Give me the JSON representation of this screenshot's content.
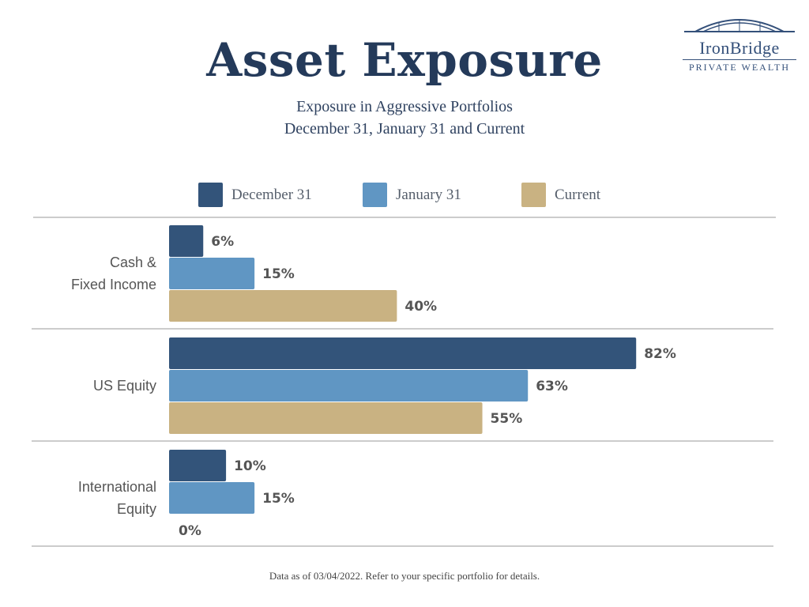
{
  "title": "Asset Exposure",
  "subtitle_line1": "Exposure in Aggressive Portfolios",
  "subtitle_line2": "December 31, January 31 and Current",
  "logo": {
    "name": "IronBridge",
    "tagline": "PRIVATE WEALTH"
  },
  "footer": "Data as of 03/04/2022.  Refer to your specific portfolio for details.",
  "chart_data": {
    "type": "bar",
    "orientation": "horizontal",
    "categories": [
      [
        "Cash &",
        "Fixed Income"
      ],
      [
        "US Equity"
      ],
      [
        "International",
        "Equity"
      ]
    ],
    "series": [
      {
        "name": "December 31",
        "color": "#33547a",
        "values": [
          6,
          82,
          10
        ]
      },
      {
        "name": "January 31",
        "color": "#6096c3",
        "values": [
          15,
          63,
          15
        ]
      },
      {
        "name": "Current",
        "color": "#c9b282",
        "values": [
          40,
          55,
          0
        ]
      }
    ],
    "value_format": "percent",
    "xlim": [
      0,
      100
    ],
    "grid": false,
    "legend_position": "top"
  }
}
